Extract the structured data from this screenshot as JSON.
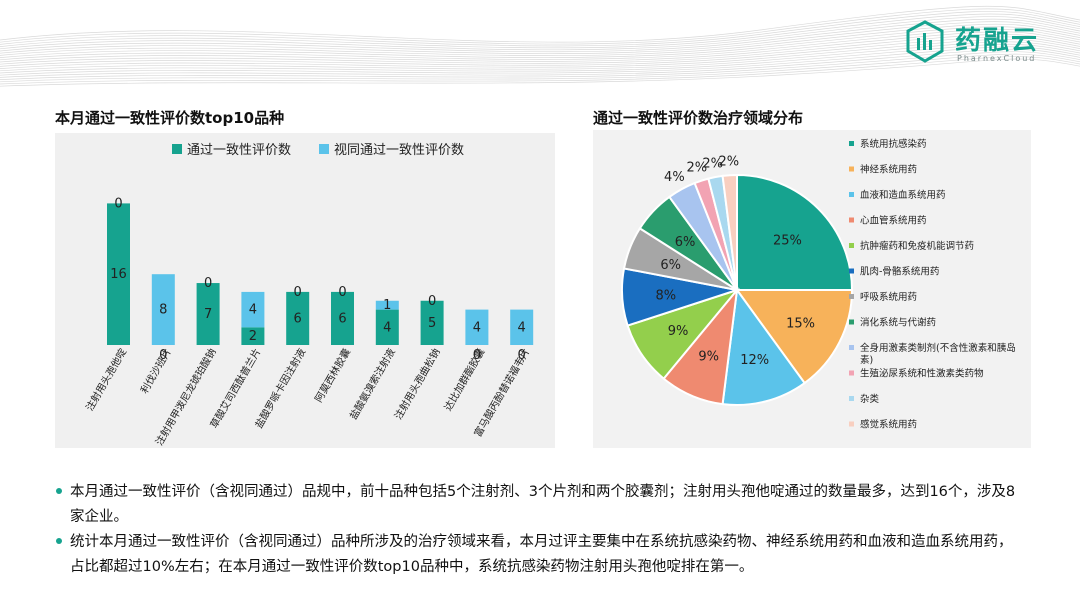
{
  "header": {
    "brand_name": "药融云",
    "brand_sub": "PharnexCloud"
  },
  "left": {
    "title": "本月通过一致性评价数top10品种"
  },
  "right": {
    "title": "通过一致性评价数治疗领域分布"
  },
  "chart_data": [
    {
      "type": "bar",
      "stacked": true,
      "categories": [
        "注射用头孢他啶",
        "利伐沙班片",
        "注射用甲泼尼龙琥珀酸钠",
        "草酸艾司西酞普兰片",
        "盐酸罗哌卡因注射液",
        "阿莫西林胶囊",
        "盐酸氨溴索注射液",
        "注射用头孢曲松钠",
        "达比加群酯胶囊",
        "富马酸丙酚替诺福韦片"
      ],
      "series": [
        {
          "name": "通过一致性评价数",
          "color": "#16a38f",
          "values": [
            16,
            0,
            7,
            2,
            6,
            6,
            4,
            5,
            0,
            0
          ]
        },
        {
          "name": "视同通过一致性评价数",
          "color": "#5bc3ea",
          "values": [
            0,
            8,
            0,
            4,
            0,
            0,
            1,
            0,
            4,
            4
          ]
        }
      ],
      "legend_position": "top",
      "grid": false
    },
    {
      "type": "pie",
      "labels": [
        "系统用抗感染药",
        "神经系统用药",
        "血液和造血系统用药",
        "心血管系统用药",
        "抗肿瘤药和免疫机能调节药",
        "肌肉-骨骼系统用药",
        "呼吸系统用药",
        "消化系统与代谢药",
        "全身用激素类制剂(不含性激素和胰岛素)",
        "生殖泌尿系统和性激素类药物",
        "杂类",
        "感觉系统用药"
      ],
      "values": [
        25,
        15,
        12,
        9,
        9,
        8,
        6,
        6,
        4,
        2,
        2,
        2
      ],
      "value_labels": [
        "25%",
        "15%",
        "12%",
        "9%",
        "9%",
        "8%",
        "6%",
        "6%",
        "4%",
        "2%",
        "2%",
        "2%"
      ],
      "colors": [
        "#16a38f",
        "#f7b25a",
        "#5bc3ea",
        "#ef8a70",
        "#93cf4c",
        "#1a6ec0",
        "#a6a6a6",
        "#2a9d6e",
        "#a8c4ef",
        "#f2a3b3",
        "#a9d8ef",
        "#f8cfc0"
      ],
      "legend_position": "right"
    }
  ],
  "bullets": [
    "本月通过一致性评价（含视同通过）品规中，前十品种包括5个注射剂、3个片剂和两个胶囊剂；注射用头孢他啶通过的数量最多，达到16个，涉及8家企业。",
    "统计本月通过一致性评价（含视同通过）品种所涉及的治疗领域来看，本月过评主要集中在系统抗感染药物、神经系统用药和血液和造血系统用药，占比都超过10%左右；在本月通过一致性评价数top10品种中，系统抗感染药物注射用头孢他啶排在第一。"
  ]
}
